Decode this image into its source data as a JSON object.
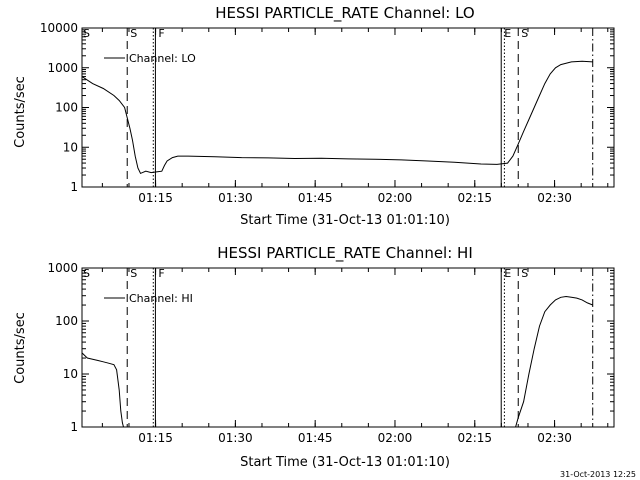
{
  "footer_timestamp": "31-Oct-2013 12:25",
  "chart_data": [
    {
      "type": "line",
      "title": "HESSI PARTICLE_RATE Channel: LO",
      "xlabel": "Start Time (31-Oct-13 01:01:10)",
      "ylabel": "Counts/sec",
      "x_unit": "minutes after 01:01:10",
      "xlim": [
        0,
        100
      ],
      "ylim": [
        1,
        10000
      ],
      "yscale": "log",
      "ytick_values": [
        1,
        10,
        100,
        1000,
        10000
      ],
      "ytick_labels": [
        "1",
        "10",
        "100",
        "1000",
        "10000"
      ],
      "xtick_labels": [
        "01:15",
        "01:30",
        "01:45",
        "02:00",
        "02:15",
        "02:30"
      ],
      "xtick_minutes": [
        13.83,
        28.83,
        43.83,
        58.83,
        73.83,
        88.83
      ],
      "legend": {
        "label": "Channel: LO",
        "position": "top-left"
      },
      "series": [
        {
          "name": "Channel: LO",
          "x": [
            0,
            2,
            4,
            6,
            7,
            8,
            9,
            9.5,
            10,
            10.5,
            11,
            12,
            13,
            14,
            15,
            15.5,
            16,
            17,
            18,
            20,
            25,
            30,
            35,
            40,
            45,
            50,
            55,
            60,
            65,
            70,
            75,
            78,
            80,
            81,
            82,
            83,
            84,
            85,
            86,
            87,
            88,
            89,
            90,
            92,
            94,
            96
          ],
          "y": [
            600,
            400,
            300,
            200,
            150,
            100,
            30,
            15,
            6,
            3,
            2.2,
            2.5,
            2.3,
            2.4,
            2.5,
            3.5,
            4.5,
            5.5,
            6,
            6,
            5.8,
            5.5,
            5.4,
            5.2,
            5.3,
            5.1,
            5.0,
            4.8,
            4.5,
            4.2,
            3.8,
            3.7,
            4,
            6,
            12,
            25,
            50,
            100,
            200,
            400,
            700,
            1000,
            1200,
            1400,
            1450,
            1400
          ]
        }
      ],
      "event_markers": [
        {
          "minute": 8.5,
          "label": "S",
          "style": "dashed"
        },
        {
          "minute": 13.4,
          "label": "",
          "style": "dotted"
        },
        {
          "minute": 13.8,
          "label": "F",
          "style": "solid"
        },
        {
          "minute": 78.8,
          "label": "E",
          "style": "solid"
        },
        {
          "minute": 79.4,
          "label": "",
          "style": "dotted"
        },
        {
          "minute": 82.0,
          "label": "S",
          "style": "dashed"
        },
        {
          "minute": 96.0,
          "label": "",
          "style": "dashdot"
        }
      ],
      "corner_label": "S"
    },
    {
      "type": "line",
      "title": "HESSI PARTICLE_RATE Channel: HI",
      "xlabel": "Start Time (31-Oct-13 01:01:10)",
      "ylabel": "Counts/sec",
      "x_unit": "minutes after 01:01:10",
      "xlim": [
        0,
        100
      ],
      "ylim": [
        1,
        1000
      ],
      "yscale": "log",
      "ytick_values": [
        1,
        10,
        100,
        1000
      ],
      "ytick_labels": [
        "1",
        "10",
        "100",
        "1000"
      ],
      "xtick_labels": [
        "01:15",
        "01:30",
        "01:45",
        "02:00",
        "02:15",
        "02:30"
      ],
      "xtick_minutes": [
        13.83,
        28.83,
        43.83,
        58.83,
        73.83,
        88.83
      ],
      "legend": {
        "label": "Channel: HI",
        "position": "top-left"
      },
      "series": [
        {
          "name": "Channel: HI",
          "x": [
            0,
            1,
            2,
            3,
            4,
            5,
            6,
            6.5,
            7,
            7.3,
            7.6,
            7.8,
            81.5,
            82,
            83,
            84,
            85,
            86,
            87,
            88,
            89,
            90,
            91,
            92,
            93,
            94,
            95,
            96
          ],
          "y": [
            25,
            20,
            19,
            18,
            17,
            16,
            15,
            12,
            5,
            2,
            1.2,
            1,
            1,
            1.5,
            3,
            10,
            30,
            80,
            150,
            200,
            250,
            280,
            290,
            280,
            270,
            250,
            220,
            200
          ]
        }
      ],
      "event_markers": [
        {
          "minute": 8.5,
          "label": "S",
          "style": "dashed"
        },
        {
          "minute": 13.4,
          "label": "",
          "style": "dotted"
        },
        {
          "minute": 13.8,
          "label": "F",
          "style": "solid"
        },
        {
          "minute": 78.8,
          "label": "E",
          "style": "solid"
        },
        {
          "minute": 79.4,
          "label": "",
          "style": "dotted"
        },
        {
          "minute": 82.0,
          "label": "S",
          "style": "dashed"
        },
        {
          "minute": 96.0,
          "label": "",
          "style": "dashdot"
        }
      ],
      "corner_label": "S"
    }
  ]
}
